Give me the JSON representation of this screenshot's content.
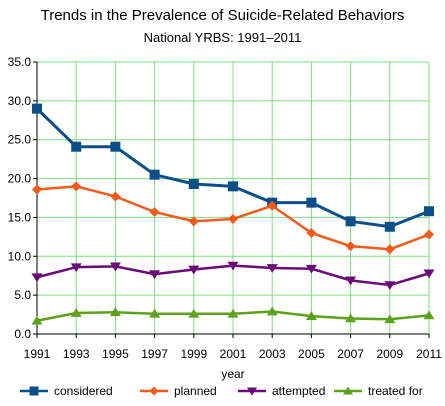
{
  "chart_data": {
    "type": "line",
    "title": "Trends in the Prevalence of Suicide-Related Behaviors",
    "subtitle": "National YRBS: 1991–2011",
    "xlabel": "year",
    "ylabel": "",
    "x": [
      "1991",
      "1993",
      "1995",
      "1997",
      "1999",
      "2001",
      "2003",
      "2005",
      "2007",
      "2009",
      "2011"
    ],
    "ylim": [
      0,
      35
    ],
    "yticks": [
      "0.0",
      "5.0",
      "10.0",
      "15.0",
      "20.0",
      "25.0",
      "30.0",
      "35.0"
    ],
    "grid": true,
    "legend_position": "bottom",
    "series": [
      {
        "name": "considered",
        "color": "#0b4f8a",
        "marker": "square",
        "values": [
          29.0,
          24.1,
          24.1,
          20.5,
          19.3,
          19.0,
          16.9,
          16.9,
          14.5,
          13.8,
          15.8
        ]
      },
      {
        "name": "planned",
        "color": "#f25a1a",
        "marker": "diamond",
        "values": [
          18.6,
          19.0,
          17.7,
          15.7,
          14.5,
          14.8,
          16.5,
          13.0,
          11.3,
          10.9,
          12.8
        ]
      },
      {
        "name": "attempted",
        "color": "#6a0a78",
        "marker": "triangle-down",
        "values": [
          7.3,
          8.6,
          8.7,
          7.7,
          8.3,
          8.8,
          8.5,
          8.4,
          6.9,
          6.3,
          7.8
        ]
      },
      {
        "name": "treated for",
        "color": "#5ea21c",
        "marker": "triangle-up",
        "values": [
          1.7,
          2.7,
          2.8,
          2.6,
          2.6,
          2.6,
          2.9,
          2.3,
          2.0,
          1.9,
          2.4
        ]
      }
    ]
  }
}
